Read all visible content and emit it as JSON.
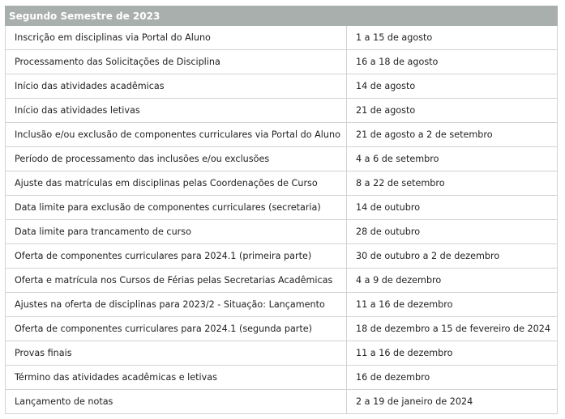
{
  "title": "Segundo Semestre de 2023",
  "rows": [
    {
      "event": "Inscrição em disciplinas via Portal do Aluno",
      "date": "1 a 15 de agosto"
    },
    {
      "event": "Processamento das Solicitações de Disciplina",
      "date": "16 a 18 de agosto"
    },
    {
      "event": "Início das atividades acadêmicas",
      "date": "14 de agosto"
    },
    {
      "event": "Início das atividades letivas",
      "date": "21 de agosto"
    },
    {
      "event": "Inclusão e/ou exclusão de componentes curriculares via Portal do Aluno",
      "date": "21 de agosto a 2 de setembro"
    },
    {
      "event": "Período de processamento das inclusões e/ou exclusões",
      "date": "4 a 6 de setembro"
    },
    {
      "event": "Ajuste das matrículas em disciplinas pelas Coordenações de Curso",
      "date": "8 a 22 de setembro"
    },
    {
      "event": "Data limite para exclusão de componentes curriculares (secretaria)",
      "date": "14 de outubro"
    },
    {
      "event": "Data limite para trancamento de curso",
      "date": "28 de outubro"
    },
    {
      "event": "Oferta de componentes curriculares para 2024.1 (primeira parte)",
      "date": "30 de outubro a 2 de dezembro"
    },
    {
      "event": "Oferta e matrícula nos Cursos de Férias pelas Secretarias Acadêmicas",
      "date": "4 a 9 de dezembro"
    },
    {
      "event": "Ajustes na oferta de disciplinas para 2023/2 - Situação: Lançamento",
      "date": "11 a 16 de dezembro"
    },
    {
      "event": "Oferta de componentes curriculares para 2024.1 (segunda parte)",
      "date": "18 de dezembro a 15 de fevereiro de 2024"
    },
    {
      "event": "Provas finais",
      "date": "11 a 16 de dezembro"
    },
    {
      "event": "Término das atividades acadêmicas e letivas",
      "date": "16 de dezembro"
    },
    {
      "event": "Lançamento de notas",
      "date": "2 a 19 de janeiro de 2024"
    }
  ]
}
